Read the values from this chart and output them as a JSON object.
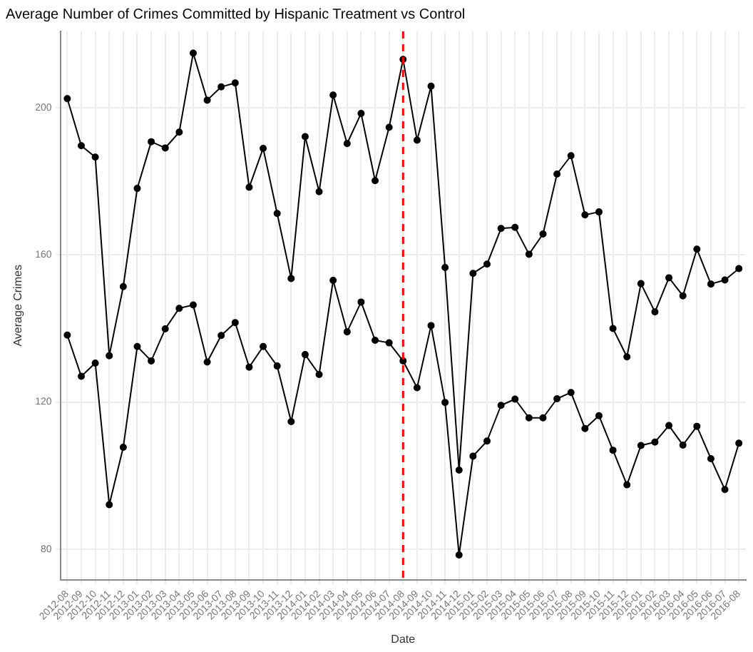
{
  "chart_data": {
    "type": "line",
    "title": "Average Number of Crimes Committed by Hispanic Treatment vs Control",
    "xlabel": "Date",
    "ylabel": "Average Crimes",
    "categories": [
      "2012-08",
      "2012-09",
      "2012-10",
      "2012-11",
      "2012-12",
      "2013-01",
      "2013-02",
      "2013-03",
      "2013-04",
      "2013-05",
      "2013-06",
      "2013-07",
      "2013-08",
      "2013-09",
      "2013-10",
      "2013-11",
      "2013-12",
      "2014-01",
      "2014-02",
      "2014-03",
      "2014-04",
      "2014-05",
      "2014-06",
      "2014-07",
      "2014-08",
      "2014-09",
      "2014-10",
      "2014-11",
      "2014-12",
      "2015-01",
      "2015-02",
      "2015-03",
      "2015-04",
      "2015-05",
      "2015-06",
      "2015-07",
      "2015-08",
      "2015-09",
      "2015-10",
      "2015-11",
      "2015-12",
      "2016-01",
      "2016-02",
      "2016-03",
      "2016-04",
      "2016-05",
      "2016-06",
      "2016-07",
      "2016-08"
    ],
    "series": [
      {
        "color": "#000000",
        "values": [
          202.5,
          189.7,
          186.6,
          132.6,
          151.4,
          178.1,
          190.8,
          189.1,
          193.4,
          214.9,
          202.1,
          205.7,
          206.8,
          178.4,
          189.0,
          171.3,
          153.6,
          192.2,
          177.2,
          203.5,
          190.3,
          198.5,
          180.2,
          194.7,
          213.2,
          191.2,
          205.9,
          156.6,
          101.5,
          155.0,
          157.5,
          167.2,
          167.5,
          160.2,
          165.7,
          182.0,
          187.0,
          170.9,
          171.7,
          140.0,
          132.3,
          152.2,
          144.5,
          153.8,
          148.9,
          161.6,
          152.1,
          153.2,
          156.3
        ]
      },
      {
        "color": "#000000",
        "values": [
          138.2,
          127.0,
          130.6,
          92.1,
          107.7,
          135.1,
          131.2,
          139.9,
          145.5,
          146.4,
          130.9,
          138.1,
          141.6,
          129.5,
          135.1,
          129.8,
          114.7,
          132.9,
          127.5,
          153.1,
          139.1,
          147.2,
          136.8,
          136.1,
          131.2,
          123.9,
          140.8,
          119.9,
          78.4,
          105.3,
          109.4,
          119.1,
          120.8,
          115.7,
          115.7,
          120.9,
          122.6,
          112.8,
          116.3,
          106.9,
          97.5,
          108.2,
          109.1,
          113.6,
          108.3,
          113.4,
          104.6,
          96.2,
          108.8
        ]
      }
    ],
    "ylim": [
      71.7,
      220.8
    ],
    "yticks": [
      80,
      120,
      160,
      200
    ],
    "grid": true,
    "legend": false,
    "marker": "circle",
    "line_style": "solid",
    "ref_lines": [
      {
        "axis": "x",
        "value": "2014-08",
        "color": "#ff0000",
        "line_style": "dashed"
      }
    ]
  }
}
